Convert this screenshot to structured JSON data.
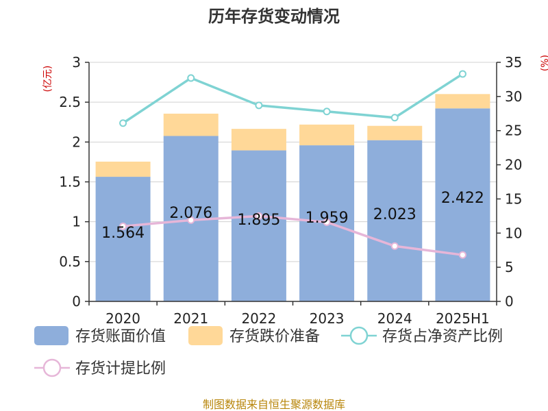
{
  "chart_data": {
    "type": "bar",
    "title": "历年存货变动情况",
    "categories": [
      "2020",
      "2021",
      "2022",
      "2023",
      "2024",
      "2025H1"
    ],
    "left_unit": "(亿元)",
    "right_unit": "(%)",
    "ylim_left": [
      0,
      3
    ],
    "ylim_right": [
      0,
      35
    ],
    "yticks_left": [
      "0",
      "0.5",
      "1",
      "1.5",
      "2",
      "2.5",
      "3"
    ],
    "yticks_right": [
      "0",
      "5",
      "10",
      "15",
      "20",
      "25",
      "30",
      "35"
    ],
    "series": [
      {
        "name": "存货账面价值",
        "type": "bar",
        "axis": "left",
        "color": "#8eaedb",
        "values": [
          1.564,
          2.076,
          1.895,
          1.959,
          2.023,
          2.422
        ],
        "labels": [
          "1.564",
          "2.076",
          "1.895",
          "1.959",
          "2.023",
          "2.422"
        ]
      },
      {
        "name": "存货跌价准备",
        "type": "bar-stacked",
        "axis": "left",
        "color": "#ffd898",
        "values": [
          0.19,
          0.28,
          0.27,
          0.26,
          0.18,
          0.18
        ]
      },
      {
        "name": "存货占净资产比例",
        "type": "line",
        "axis": "right",
        "color": "#7fd3d3",
        "values": [
          26.1,
          32.7,
          28.7,
          27.8,
          26.9,
          33.3
        ]
      },
      {
        "name": "存货计提比例",
        "type": "line",
        "axis": "right",
        "color": "#e6b6d8",
        "values": [
          11.0,
          11.9,
          12.5,
          11.6,
          8.1,
          6.8
        ]
      }
    ],
    "source": "制图数据来自恒生聚源数据库"
  }
}
